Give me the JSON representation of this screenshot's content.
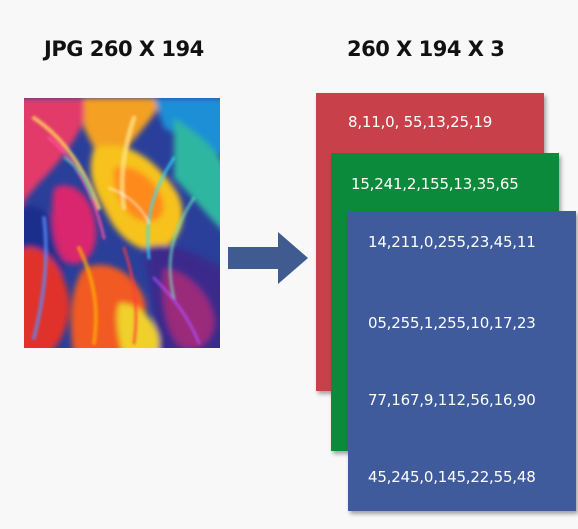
{
  "headings": {
    "image_label": "JPG 260 X 194",
    "array_label": "260 X 194 X 3"
  },
  "layers": {
    "red": {
      "color": "#c8414a",
      "rows": [
        "8,11,0, 55,13,25,19"
      ]
    },
    "green": {
      "color": "#0b8a3c",
      "rows": [
        "15,241,2,155,13,35,65"
      ]
    },
    "blue": {
      "color": "#3f5b9c",
      "rows": [
        "14,211,0,255,23,45,11",
        "05,255,1,255,10,17,23",
        "77,167,9,112,56,16,90",
        "45,245,0,145,22,55,48"
      ]
    }
  },
  "arrow": {
    "color": "#3f5b8f",
    "icon": "arrow-right-icon"
  },
  "image": {
    "icon": "abstract-paint-image"
  }
}
